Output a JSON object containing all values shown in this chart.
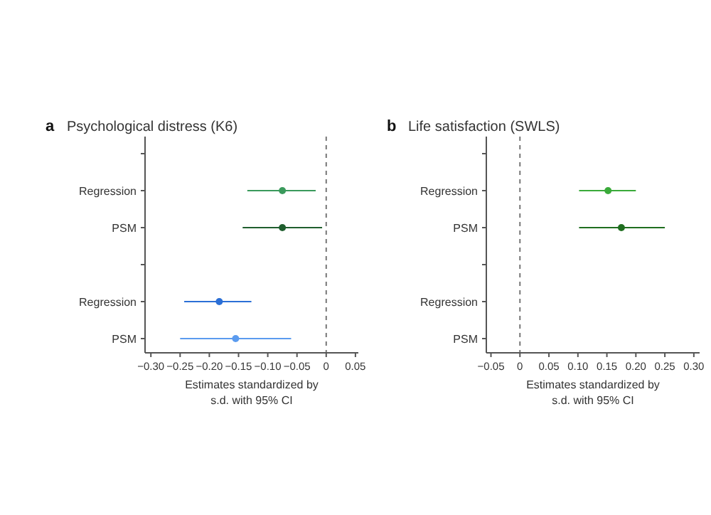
{
  "chart_data": [
    {
      "type": "scatter",
      "orientation": "horizontal",
      "title": "Psychological distress (K6)",
      "annotations": [
        "a"
      ],
      "xlabel": "Estimates standardized by\ns.d. with 95% CI",
      "categories": [
        null,
        "Regression",
        "PSM",
        null,
        "Regression",
        "PSM"
      ],
      "values": [
        null,
        -0.075,
        -0.075,
        null,
        -0.183,
        -0.155
      ],
      "errors": [
        null,
        [
          -0.135,
          -0.018
        ],
        [
          -0.143,
          -0.007
        ],
        null,
        [
          -0.243,
          -0.128
        ],
        [
          -0.25,
          -0.06
        ]
      ],
      "colors": [
        null,
        "#3a9a5c",
        "#1f5e2e",
        null,
        "#2b6fd6",
        "#5b9bef"
      ],
      "xlim": [
        -0.31,
        0.055
      ],
      "xticks": [
        {
          "value": -0.3,
          "label": "−0.30"
        },
        {
          "value": -0.25,
          "label": "−0.25"
        },
        {
          "value": -0.2,
          "label": "−0.20"
        },
        {
          "value": -0.15,
          "label": "−0.15"
        },
        {
          "value": -0.1,
          "label": "−0.10"
        },
        {
          "value": -0.05,
          "label": "−0.05"
        },
        0,
        0.05
      ],
      "ref_lines": [
        {
          "axis": "x",
          "value": 0,
          "line_style": "dashed",
          "color": "#777777"
        }
      ],
      "marker": "circle",
      "grid": false
    },
    {
      "type": "scatter",
      "orientation": "horizontal",
      "title": "Life satisfaction (SWLS)",
      "annotations": [
        "b"
      ],
      "xlabel": "Estimates standardized by\ns.d. with 95% CI",
      "categories": [
        null,
        "Regression",
        "PSM",
        null,
        "Regression",
        "PSM"
      ],
      "values": [
        null,
        0.152,
        0.175,
        null,
        null,
        null
      ],
      "errors": [
        null,
        [
          0.102,
          0.2
        ],
        [
          0.102,
          0.25
        ],
        null,
        null,
        null
      ],
      "colors": [
        null,
        "#3aaa3a",
        "#1f6e1f",
        null,
        null,
        null
      ],
      "xlim": [
        -0.058,
        0.31
      ],
      "xticks": [
        {
          "value": -0.05,
          "label": "−0.05"
        },
        0,
        0.05,
        {
          "value": 0.1,
          "label": "0.10"
        },
        0.15,
        {
          "value": 0.2,
          "label": "0.20"
        },
        0.25,
        {
          "value": 0.3,
          "label": "0.30"
        }
      ],
      "ref_lines": [
        {
          "axis": "x",
          "value": 0,
          "line_style": "dashed",
          "color": "#777777"
        }
      ],
      "marker": "circle",
      "grid": false
    }
  ]
}
